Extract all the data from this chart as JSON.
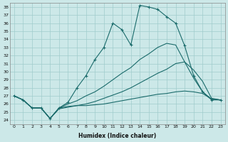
{
  "xlabel": "Humidex (Indice chaleur)",
  "ylabel": "",
  "bg_color": "#cce8e8",
  "grid_color": "#a0cccc",
  "line_color": "#1a6b6b",
  "xlim": [
    -0.5,
    23.5
  ],
  "ylim": [
    23.5,
    38.5
  ],
  "xticks": [
    0,
    1,
    2,
    3,
    4,
    5,
    6,
    7,
    8,
    9,
    10,
    11,
    12,
    13,
    14,
    15,
    16,
    17,
    18,
    19,
    20,
    21,
    22,
    23
  ],
  "yticks": [
    24,
    25,
    26,
    27,
    28,
    29,
    30,
    31,
    32,
    33,
    34,
    35,
    36,
    37,
    38
  ],
  "series": [
    {
      "y": [
        27.0,
        26.5,
        25.5,
        25.5,
        24.2,
        25.5,
        26.2,
        28.0,
        29.5,
        31.5,
        33.0,
        36.0,
        35.2,
        33.3,
        38.2,
        38.0,
        37.7,
        36.8,
        36.0,
        33.2,
        29.5,
        27.5,
        26.5,
        26.5
      ],
      "marker": true
    },
    {
      "y": [
        27.0,
        26.5,
        25.5,
        25.5,
        24.2,
        25.5,
        25.7,
        25.8,
        25.8,
        25.9,
        26.0,
        26.2,
        26.4,
        26.6,
        26.8,
        27.0,
        27.2,
        27.3,
        27.5,
        27.6,
        27.5,
        27.3,
        26.6,
        26.5
      ],
      "marker": false
    },
    {
      "y": [
        27.0,
        26.5,
        25.5,
        25.5,
        24.2,
        25.4,
        25.6,
        25.8,
        26.0,
        26.3,
        26.7,
        27.1,
        27.5,
        28.0,
        28.6,
        29.2,
        29.8,
        30.3,
        31.0,
        31.2,
        30.2,
        28.8,
        26.7,
        26.5
      ],
      "marker": false
    },
    {
      "y": [
        27.0,
        26.5,
        25.5,
        25.5,
        24.2,
        25.5,
        26.0,
        26.4,
        27.0,
        27.5,
        28.2,
        29.0,
        29.8,
        30.5,
        31.5,
        32.2,
        33.0,
        33.5,
        33.3,
        31.2,
        29.2,
        27.5,
        26.6,
        26.5
      ],
      "marker": false
    }
  ]
}
